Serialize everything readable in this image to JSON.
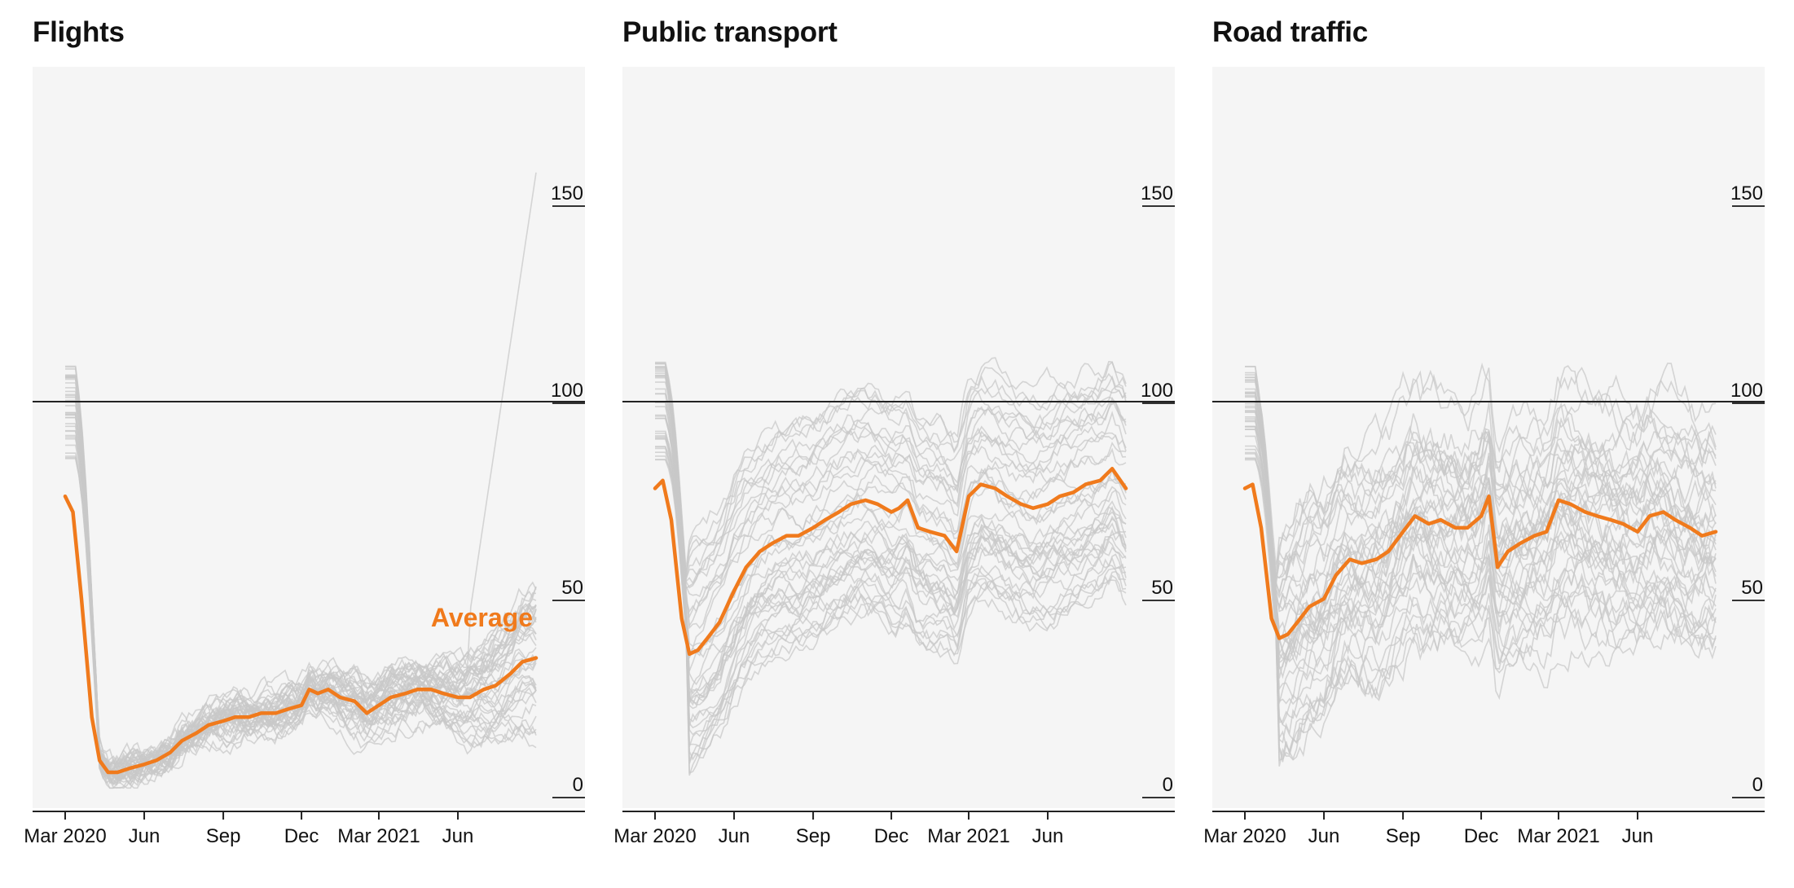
{
  "chart_data": [
    {
      "type": "line",
      "title": "Flights",
      "x_ticks": [
        "Mar 2020",
        "Jun",
        "Sep",
        "Dec",
        "Mar 2021",
        "Jun"
      ],
      "x_range": [
        "2020-03-01",
        "2021-08-31"
      ],
      "y_ticks": [
        "0",
        "50",
        "100",
        "150"
      ],
      "ylim": [
        0,
        172
      ],
      "reference_line": 100,
      "annotation": "Average",
      "average_series": {
        "color": "#f07a1c",
        "x": [
          "2020-03-01",
          "2020-03-10",
          "2020-03-20",
          "2020-04-01",
          "2020-04-10",
          "2020-04-20",
          "2020-05-01",
          "2020-05-15",
          "2020-06-01",
          "2020-06-15",
          "2020-07-01",
          "2020-07-15",
          "2020-08-01",
          "2020-08-15",
          "2020-09-01",
          "2020-09-15",
          "2020-10-01",
          "2020-10-15",
          "2020-11-01",
          "2020-11-15",
          "2020-12-01",
          "2020-12-10",
          "2020-12-20",
          "2021-01-01",
          "2021-01-15",
          "2021-02-01",
          "2021-02-15",
          "2021-03-01",
          "2021-03-15",
          "2021-04-01",
          "2021-04-15",
          "2021-05-01",
          "2021-05-15",
          "2021-06-01",
          "2021-06-15",
          "2021-07-01",
          "2021-07-15",
          "2021-08-01",
          "2021-08-15",
          "2021-08-31"
        ],
        "values": [
          76,
          72,
          50,
          20,
          9,
          6,
          6,
          7,
          8,
          9,
          11,
          14,
          16,
          18,
          19,
          20,
          20,
          21,
          21,
          22,
          23,
          27,
          26,
          27,
          25,
          24,
          21,
          23,
          25,
          26,
          27,
          27,
          26,
          25,
          25,
          27,
          28,
          31,
          34,
          35
        ]
      },
      "background_series": {
        "color": "#c8c8c8",
        "count": 40,
        "note": "individual country series, values between 2 and 160"
      }
    },
    {
      "type": "line",
      "title": "Public transport",
      "x_ticks": [
        "Mar 2020",
        "Jun",
        "Sep",
        "Dec",
        "Mar 2021",
        "Jun"
      ],
      "x_range": [
        "2020-03-01",
        "2021-08-31"
      ],
      "y_ticks": [
        "0",
        "50",
        "100",
        "150"
      ],
      "ylim": [
        0,
        172
      ],
      "reference_line": 100,
      "average_series": {
        "color": "#f07a1c",
        "x": [
          "2020-03-01",
          "2020-03-10",
          "2020-03-20",
          "2020-04-01",
          "2020-04-10",
          "2020-04-20",
          "2020-05-01",
          "2020-05-15",
          "2020-06-01",
          "2020-06-15",
          "2020-07-01",
          "2020-07-15",
          "2020-08-01",
          "2020-08-15",
          "2020-09-01",
          "2020-09-15",
          "2020-10-01",
          "2020-10-15",
          "2020-11-01",
          "2020-11-15",
          "2020-12-01",
          "2020-12-10",
          "2020-12-20",
          "2021-01-01",
          "2021-01-15",
          "2021-02-01",
          "2021-02-15",
          "2021-03-01",
          "2021-03-15",
          "2021-04-01",
          "2021-04-15",
          "2021-05-01",
          "2021-05-15",
          "2021-06-01",
          "2021-06-15",
          "2021-07-01",
          "2021-07-15",
          "2021-08-01",
          "2021-08-15",
          "2021-08-31"
        ],
        "values": [
          78,
          80,
          70,
          45,
          36,
          37,
          40,
          44,
          52,
          58,
          62,
          64,
          66,
          66,
          68,
          70,
          72,
          74,
          75,
          74,
          72,
          73,
          75,
          68,
          67,
          66,
          62,
          76,
          79,
          78,
          76,
          74,
          73,
          74,
          76,
          77,
          79,
          80,
          83,
          78
        ]
      },
      "background_series": {
        "color": "#c8c8c8",
        "count": 40,
        "note": "individual country series, values between 10 and 145"
      }
    },
    {
      "type": "line",
      "title": "Road traffic",
      "x_ticks": [
        "Mar 2020",
        "Jun",
        "Sep",
        "Dec",
        "Mar 2021",
        "Jun"
      ],
      "x_range": [
        "2020-03-01",
        "2021-08-31"
      ],
      "y_ticks": [
        "0",
        "50",
        "100",
        "150"
      ],
      "ylim": [
        0,
        172
      ],
      "reference_line": 100,
      "average_series": {
        "color": "#f07a1c",
        "x": [
          "2020-03-01",
          "2020-03-10",
          "2020-03-20",
          "2020-04-01",
          "2020-04-10",
          "2020-04-20",
          "2020-05-01",
          "2020-05-15",
          "2020-06-01",
          "2020-06-15",
          "2020-07-01",
          "2020-07-15",
          "2020-08-01",
          "2020-08-15",
          "2020-09-01",
          "2020-09-15",
          "2020-10-01",
          "2020-10-15",
          "2020-11-01",
          "2020-11-15",
          "2020-12-01",
          "2020-12-10",
          "2020-12-20",
          "2021-01-01",
          "2021-01-15",
          "2021-02-01",
          "2021-02-15",
          "2021-03-01",
          "2021-03-15",
          "2021-04-01",
          "2021-04-15",
          "2021-05-01",
          "2021-05-15",
          "2021-06-01",
          "2021-06-15",
          "2021-07-01",
          "2021-07-15",
          "2021-08-01",
          "2021-08-15",
          "2021-08-31"
        ],
        "values": [
          78,
          79,
          68,
          45,
          40,
          41,
          44,
          48,
          50,
          56,
          60,
          59,
          60,
          62,
          67,
          71,
          69,
          70,
          68,
          68,
          71,
          76,
          58,
          62,
          64,
          66,
          67,
          75,
          74,
          72,
          71,
          70,
          69,
          67,
          71,
          72,
          70,
          68,
          66,
          67
        ]
      },
      "background_series": {
        "color": "#c8c8c8",
        "count": 40,
        "note": "individual country series, values between 3 and 150"
      }
    }
  ]
}
